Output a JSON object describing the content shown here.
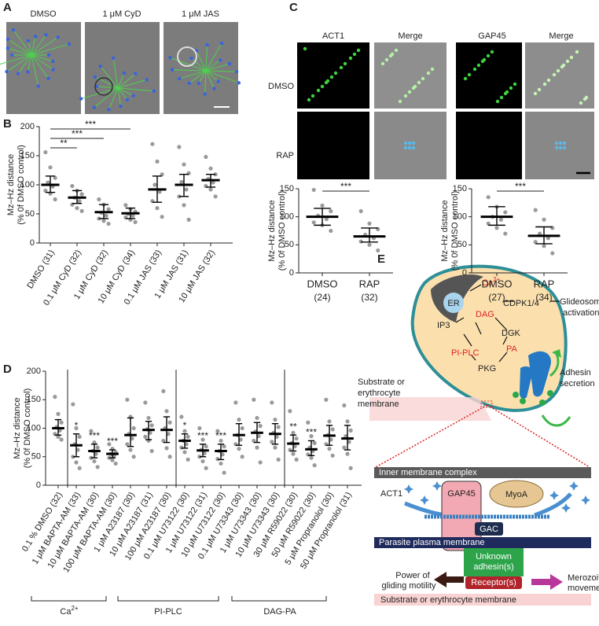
{
  "panel_labels": [
    "A",
    "B",
    "C",
    "D",
    "E"
  ],
  "panel_a": {
    "labels": [
      "DMSO",
      "1 μM CyD",
      "1 μM JAS"
    ]
  },
  "chart_b": {
    "type": "scatter",
    "ylabel": [
      "Mz–Hz distance",
      "(% 0f DMSO control)"
    ],
    "ylim": [
      0,
      200
    ],
    "yticks": [
      0,
      50,
      100,
      150,
      200
    ],
    "categories": [
      "DMSO (31)",
      "0.1 μM CyD (32)",
      "1 μM CyD (32)",
      "10 μM CyD (34)",
      "0.1 μM JAS (33)",
      "1 μM JAS (31)",
      "10 μM JAS (32)"
    ],
    "means": [
      100,
      78,
      53,
      51,
      92,
      100,
      108
    ],
    "lower": [
      87,
      68,
      42,
      42,
      70,
      80,
      96
    ],
    "upper": [
      115,
      90,
      66,
      60,
      115,
      118,
      118
    ],
    "points": [
      [
        156,
        130,
        112,
        104,
        97,
        90,
        85,
        75
      ],
      [
        98,
        90,
        84,
        78,
        72,
        66,
        60,
        55
      ],
      [
        75,
        66,
        58,
        52,
        47,
        42,
        38,
        33
      ],
      [
        65,
        58,
        54,
        50,
        47,
        44,
        40,
        36
      ],
      [
        170,
        140,
        118,
        100,
        88,
        72,
        60,
        45
      ],
      [
        165,
        135,
        120,
        105,
        92,
        80,
        65,
        40
      ],
      [
        148,
        128,
        118,
        110,
        104,
        98,
        92,
        80
      ]
    ],
    "comparisons": [
      {
        "from": 0,
        "to": 3,
        "label": "***"
      },
      {
        "from": 0,
        "to": 2,
        "label": "***"
      },
      {
        "from": 0,
        "to": 1,
        "label": "**"
      }
    ]
  },
  "panel_c": {
    "columns": [
      "ACT1",
      "Merge",
      "GAP45",
      "Merge"
    ],
    "rows": [
      "DMSO",
      "RAP"
    ]
  },
  "chart_c1": {
    "type": "scatter",
    "ylabel": [
      "Mz–Hz distance",
      "(% 0f DMSO control)"
    ],
    "ylim": [
      0,
      150
    ],
    "yticks": [
      0,
      50,
      100,
      150
    ],
    "categories": [
      "DMSO",
      "RAP"
    ],
    "counts": [
      "(24)",
      "(32)"
    ],
    "means": [
      100,
      65
    ],
    "lower": [
      85,
      55
    ],
    "upper": [
      115,
      80
    ],
    "points": [
      [
        148,
        120,
        110,
        102,
        96,
        90,
        85,
        75
      ],
      [
        110,
        88,
        78,
        68,
        62,
        56,
        50,
        40
      ]
    ],
    "comparisons": [
      {
        "from": 0,
        "to": 1,
        "label": "***"
      }
    ]
  },
  "chart_c2": {
    "type": "scatter",
    "ylabel": [
      "Mz–Hz distance",
      "(% 0f DMSO control)"
    ],
    "ylim": [
      0,
      150
    ],
    "yticks": [
      0,
      50,
      100,
      150
    ],
    "categories": [
      "DMSO",
      "RAP"
    ],
    "counts": [
      "(27)",
      "(34)"
    ],
    "means": [
      100,
      66
    ],
    "lower": [
      85,
      52
    ],
    "upper": [
      118,
      82
    ],
    "points": [
      [
        135,
        118,
        108,
        100,
        95,
        88,
        80,
        70
      ],
      [
        112,
        95,
        80,
        70,
        62,
        55,
        48,
        35
      ]
    ],
    "comparisons": [
      {
        "from": 0,
        "to": 1,
        "label": "***"
      }
    ]
  },
  "chart_d": {
    "type": "scatter",
    "ylabel": [
      "Mz–Hz distance",
      "(% 0f DMSO control)"
    ],
    "ylim": [
      0,
      200
    ],
    "yticks": [
      0,
      50,
      100,
      150,
      200
    ],
    "categories": [
      "0.1 % DMSO (32)",
      "1 μM BAPTA-AM (33)",
      "10 μM BAPTA-AM (30)",
      "100 μM BAPTA-AM (30)",
      "1 μM A23187 (30)",
      "10 μM A23187 (31)",
      "100 μM A23187 (30)",
      "0.1 μM U73122 (30)",
      "1 μM U73122 (31)",
      "10 μM U73122 (30)",
      "0.1 μM U73343 (30)",
      "1 μM U73343 (30)",
      "10 μM U73343 (30)",
      "30 μM R59022 (30)",
      "50 μM R59022 (30)",
      "5 μM Propranolol (30)",
      "50 μM Propranolol (31)"
    ],
    "means": [
      100,
      70,
      60,
      55,
      88,
      97,
      97,
      78,
      61,
      60,
      88,
      92,
      90,
      73,
      63,
      87,
      82
    ],
    "lower": [
      88,
      50,
      48,
      48,
      68,
      80,
      75,
      65,
      50,
      45,
      70,
      75,
      72,
      60,
      52,
      70,
      62
    ],
    "upper": [
      115,
      90,
      72,
      62,
      118,
      112,
      120,
      90,
      72,
      72,
      108,
      110,
      108,
      88,
      78,
      105,
      105
    ],
    "points": [
      [
        155,
        125,
        110,
        102,
        96,
        90,
        85,
        80
      ],
      [
        142,
        100,
        85,
        72,
        62,
        50,
        40,
        30
      ],
      [
        95,
        75,
        66,
        60,
        55,
        48,
        42,
        32
      ],
      [
        72,
        64,
        58,
        55,
        52,
        48,
        44,
        38
      ],
      [
        150,
        120,
        100,
        90,
        82,
        72,
        62,
        50
      ],
      [
        145,
        118,
        105,
        98,
        92,
        85,
        78,
        60
      ],
      [
        165,
        130,
        110,
        100,
        90,
        78,
        65,
        50
      ],
      [
        120,
        95,
        85,
        78,
        72,
        66,
        58,
        45
      ],
      [
        100,
        80,
        68,
        62,
        56,
        50,
        42,
        30
      ],
      [
        95,
        78,
        68,
        60,
        54,
        46,
        38,
        22
      ],
      [
        145,
        115,
        100,
        88,
        80,
        72,
        64,
        50
      ],
      [
        150,
        118,
        104,
        94,
        86,
        78,
        66,
        40
      ],
      [
        145,
        115,
        102,
        92,
        85,
        76,
        66,
        45
      ],
      [
        130,
        92,
        82,
        74,
        68,
        62,
        55,
        45
      ],
      [
        110,
        86,
        74,
        66,
        60,
        54,
        48,
        35
      ],
      [
        150,
        112,
        98,
        88,
        80,
        72,
        64,
        52
      ],
      [
        140,
        112,
        96,
        86,
        76,
        66,
        55,
        30
      ]
    ],
    "sig": [
      null,
      "*",
      "***",
      "***",
      null,
      null,
      null,
      "*",
      "***",
      "***",
      null,
      null,
      null,
      "**",
      "***",
      null,
      null
    ],
    "groups": [
      {
        "base": "Ca",
        "sup": "2+"
      },
      "PI-PLC",
      "DAG-PA"
    ]
  },
  "panel_e": {
    "ca": {
      "base": "Ca",
      "sup": "2+"
    },
    "er": "ER",
    "cdpk": "CDPK1/4",
    "glideosome": [
      "Glideosome",
      "activation"
    ],
    "ip3": "IP3",
    "dag": "DAG",
    "dgk": "DGK",
    "piplc": "PI-PLC",
    "pa": "PA",
    "pkg": "PKG",
    "adhesin": [
      "Adhesin",
      "secretion"
    ],
    "substrate_top": [
      "Substrate",
      "or",
      "erythrocyte",
      "membrane"
    ],
    "imc": "Inner membrane complex",
    "act1": "ACT1",
    "gap45": "GAP45",
    "myoa": "MyoA",
    "gac": "GAC",
    "ppm": "Parasite plasma membrane",
    "unknown": [
      "Unknown",
      "adhesin(s)"
    ],
    "receptor": "Receptor(s)",
    "power": [
      "Power of",
      "gliding motility"
    ],
    "movement": [
      "Merozoite",
      "movement"
    ],
    "substrate_bottom": "Substrate or erythrocyte membrane"
  }
}
